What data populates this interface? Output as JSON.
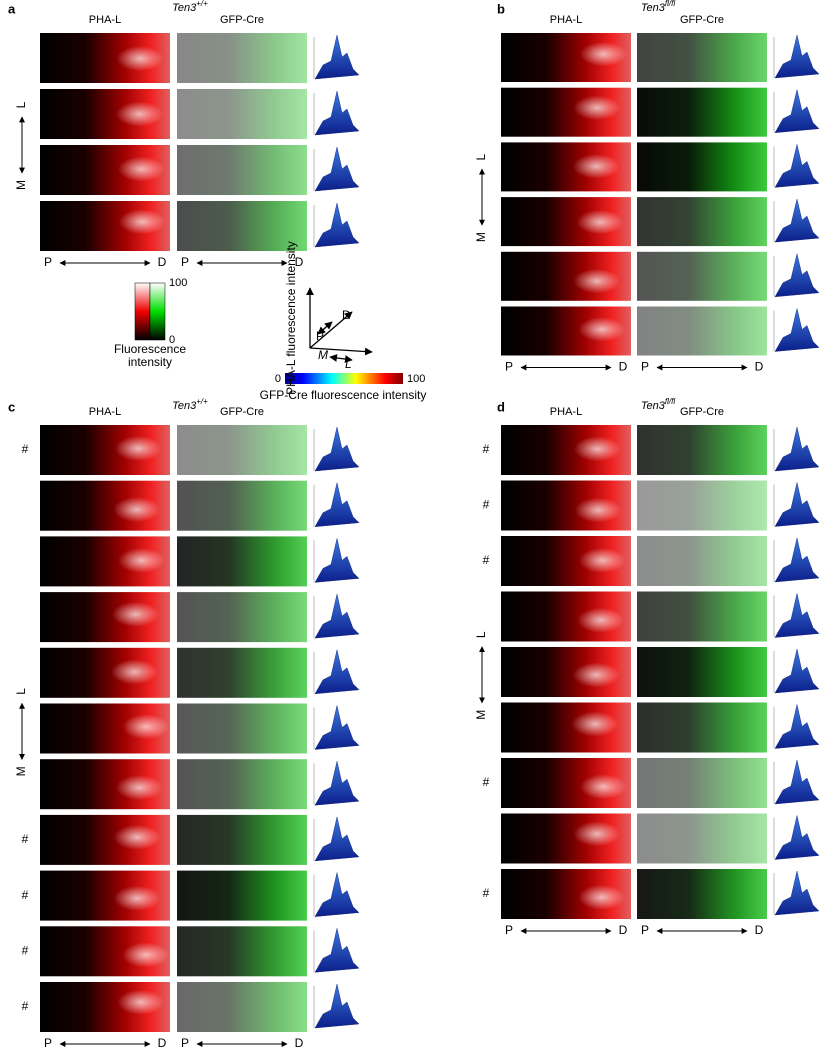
{
  "panels": [
    {
      "letter": "a",
      "genotype": {
        "name": "Ten3",
        "superscript": "+/+"
      },
      "columns": [
        "PHA-L",
        "GFP-Cre"
      ],
      "lateral": "L",
      "medial": "M",
      "proximal": "P",
      "distal": "D",
      "row_marks": [
        null,
        null,
        null,
        null
      ]
    },
    {
      "letter": "b",
      "genotype": {
        "name": "Ten3",
        "superscript": "fl/fl"
      },
      "columns": [
        "PHA-L",
        "GFP-Cre"
      ],
      "lateral": "L",
      "medial": "M",
      "proximal": "P",
      "distal": "D",
      "row_marks": [
        null,
        null,
        null,
        null,
        null,
        null
      ]
    },
    {
      "letter": "c",
      "genotype": {
        "name": "Ten3",
        "superscript": "+/+"
      },
      "columns": [
        "PHA-L",
        "GFP-Cre"
      ],
      "lateral": "L",
      "medial": "M",
      "proximal": "P",
      "distal": "D",
      "row_marks": [
        "#",
        null,
        null,
        null,
        null,
        null,
        null,
        "#",
        "#",
        "#",
        "#"
      ]
    },
    {
      "letter": "d",
      "genotype": {
        "name": "Ten3",
        "superscript": "fl/fl"
      },
      "columns": [
        "PHA-L",
        "GFP-Cre"
      ],
      "lateral": "L",
      "medial": "M",
      "proximal": "P",
      "distal": "D",
      "row_marks": [
        "#",
        "#",
        "#",
        null,
        null,
        null,
        "#",
        null,
        "#"
      ]
    }
  ],
  "legend": {
    "ticks": [
      0,
      100
    ],
    "label": "Fluorescence intensity"
  },
  "axes_key": {
    "z_label": "PHA-L fluorescence intensity",
    "x": [
      "P",
      "D"
    ],
    "y": [
      "M",
      "L"
    ]
  },
  "colorbar": {
    "ticks": [
      0,
      100
    ],
    "label": "GFP-Cre fluorescence intensity"
  }
}
